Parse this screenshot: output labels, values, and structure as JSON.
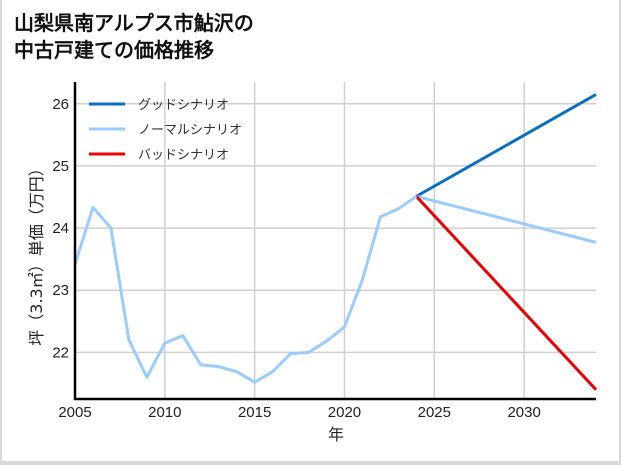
{
  "title": "山梨県南アルプス市鮎沢の\n中古戸建ての価格推移",
  "chart_data": {
    "type": "line",
    "title": "山梨県南アルプス市鮎沢の中古戸建ての価格推移",
    "xlabel": "年",
    "ylabel": "坪（3.3㎡）単価（万円）",
    "xlim": [
      2005,
      2034
    ],
    "ylim": [
      21.25,
      26.35
    ],
    "xticks": [
      2005,
      2010,
      2015,
      2020,
      2025,
      2030
    ],
    "yticks": [
      22,
      23,
      24,
      25,
      26
    ],
    "grid": true,
    "legend_position": "upper left",
    "historical": {
      "x": [
        2005,
        2006,
        2007,
        2008,
        2009,
        2010,
        2011,
        2012,
        2013,
        2014,
        2015,
        2016,
        2017,
        2018,
        2019,
        2020,
        2021,
        2022,
        2023,
        2024
      ],
      "values": [
        23.42,
        24.33,
        24.0,
        22.2,
        21.6,
        22.15,
        22.27,
        21.8,
        21.77,
        21.69,
        21.52,
        21.69,
        21.98,
        22.0,
        22.18,
        22.41,
        23.17,
        24.18,
        24.31,
        24.51
      ]
    },
    "series": [
      {
        "name": "グッドシナリオ",
        "color": "#0a6fc2",
        "x": [
          2024,
          2034
        ],
        "values": [
          24.51,
          26.15
        ]
      },
      {
        "name": "ノーマルシナリオ",
        "color": "#99ccff",
        "x": [
          2024,
          2034
        ],
        "values": [
          24.51,
          23.77
        ]
      },
      {
        "name": "バッドシナリオ",
        "color": "#ee0000",
        "x": [
          2024,
          2034
        ],
        "values": [
          24.51,
          21.4
        ]
      }
    ]
  }
}
